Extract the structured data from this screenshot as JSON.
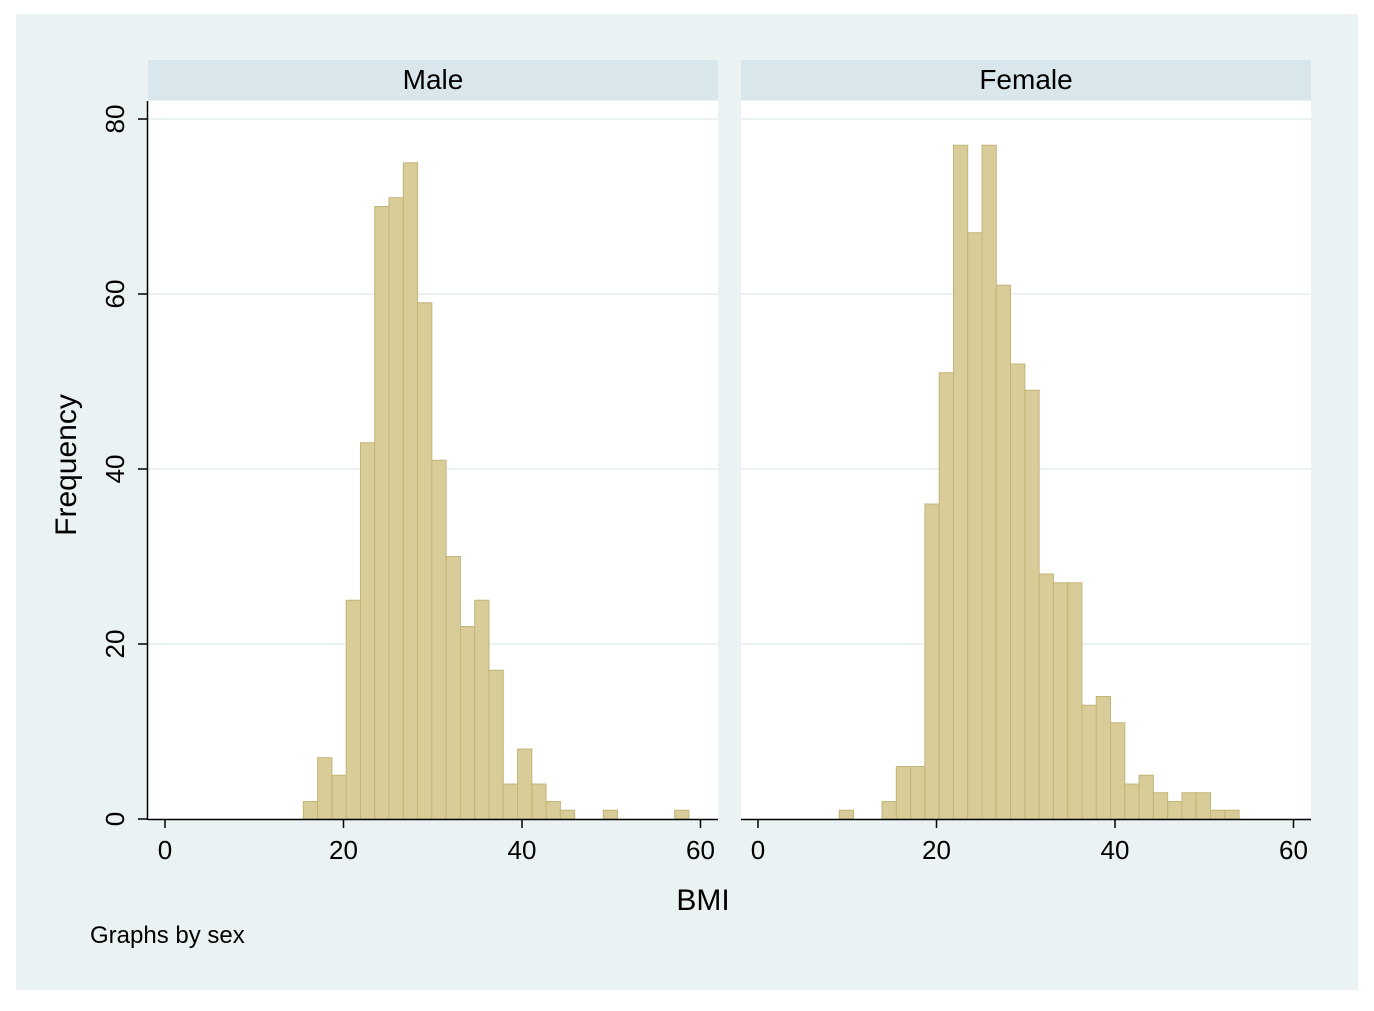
{
  "chart_data": {
    "type": "bar",
    "subtype": "histogram",
    "xlabel": "BMI",
    "ylabel": "Frequency",
    "note": "Graphs by sex",
    "xlim": [
      0,
      60
    ],
    "ylim": [
      0,
      80
    ],
    "xticks": [
      "0",
      "20",
      "40",
      "60"
    ],
    "yticks": [
      "0",
      "20",
      "40",
      "60",
      "80"
    ],
    "bin_width": 1.6,
    "grid": true,
    "colors": {
      "background": "#eaf2f3",
      "plot": "#ffffff",
      "facet_header": "#d9e6eb",
      "bar_fill": "#d8cc98",
      "bar_edge": "#c3b478",
      "grid": "#eaf2f3"
    },
    "panels": [
      {
        "title": "Male",
        "bins": [
          {
            "x0": 15.5,
            "value": 2
          },
          {
            "x0": 17.1,
            "value": 7
          },
          {
            "x0": 18.7,
            "value": 5
          },
          {
            "x0": 20.3,
            "value": 25
          },
          {
            "x0": 21.9,
            "value": 43
          },
          {
            "x0": 23.5,
            "value": 70
          },
          {
            "x0": 25.1,
            "value": 71
          },
          {
            "x0": 26.7,
            "value": 75
          },
          {
            "x0": 28.3,
            "value": 59
          },
          {
            "x0": 29.9,
            "value": 41
          },
          {
            "x0": 31.5,
            "value": 30
          },
          {
            "x0": 33.1,
            "value": 22
          },
          {
            "x0": 34.7,
            "value": 25
          },
          {
            "x0": 36.3,
            "value": 17
          },
          {
            "x0": 37.9,
            "value": 4
          },
          {
            "x0": 39.5,
            "value": 8
          },
          {
            "x0": 41.1,
            "value": 4
          },
          {
            "x0": 42.7,
            "value": 2
          },
          {
            "x0": 44.3,
            "value": 1
          },
          {
            "x0": 49.1,
            "value": 1
          },
          {
            "x0": 57.1,
            "value": 1
          }
        ]
      },
      {
        "title": "Female",
        "bins": [
          {
            "x0": 9.1,
            "value": 1
          },
          {
            "x0": 13.9,
            "value": 2
          },
          {
            "x0": 15.5,
            "value": 6
          },
          {
            "x0": 17.1,
            "value": 6
          },
          {
            "x0": 18.7,
            "value": 36
          },
          {
            "x0": 20.3,
            "value": 51
          },
          {
            "x0": 21.9,
            "value": 77
          },
          {
            "x0": 23.5,
            "value": 67
          },
          {
            "x0": 25.1,
            "value": 77
          },
          {
            "x0": 26.7,
            "value": 61
          },
          {
            "x0": 28.3,
            "value": 52
          },
          {
            "x0": 29.9,
            "value": 49
          },
          {
            "x0": 31.5,
            "value": 28
          },
          {
            "x0": 33.1,
            "value": 27
          },
          {
            "x0": 34.7,
            "value": 27
          },
          {
            "x0": 36.3,
            "value": 13
          },
          {
            "x0": 37.9,
            "value": 14
          },
          {
            "x0": 39.5,
            "value": 11
          },
          {
            "x0": 41.1,
            "value": 4
          },
          {
            "x0": 42.7,
            "value": 5
          },
          {
            "x0": 44.3,
            "value": 3
          },
          {
            "x0": 45.9,
            "value": 2
          },
          {
            "x0": 47.5,
            "value": 3
          },
          {
            "x0": 49.1,
            "value": 3
          },
          {
            "x0": 50.7,
            "value": 1
          },
          {
            "x0": 52.3,
            "value": 1
          }
        ]
      }
    ]
  }
}
